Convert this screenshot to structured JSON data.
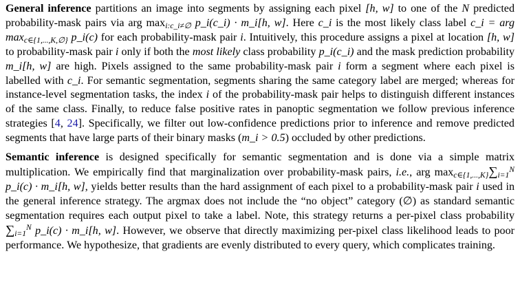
{
  "paragraphs": [
    {
      "lead": "General inference",
      "segments": [
        " partitions an image into segments by assigning each pixel ",
        "[h, w]",
        " to one of the ",
        "N",
        " predicted probability-mask pairs via ",
        "arg max",
        "i:c_i≠∅",
        " p_i(c_i) · m_i[h, w]",
        ". Here ",
        "c_i",
        " is the most likely class label ",
        "c_i = arg max",
        "c∈{1,...,K,∅}",
        " p_i(c)",
        " for each probability-mask pair ",
        "i",
        ". Intuitively, this procedure assigns a pixel at location ",
        "[h, w]",
        " to probability-mask pair ",
        "i",
        " only if both the ",
        "most likely",
        " class probability ",
        "p_i(c_i)",
        " and the mask prediction probability ",
        "m_i[h, w]",
        " are high. Pixels assigned to the same probability-mask pair ",
        "i",
        " form a segment where each pixel is labelled with ",
        "c_i",
        ". For semantic segmentation, segments sharing the same category label are merged; whereas for instance-level segmentation tasks, the index ",
        "i",
        " of the probability-mask pair helps to distinguish different instances of the same class. Finally, to reduce false positive rates in panoptic segmentation we follow previous inference strategies [",
        "4",
        ", ",
        "24",
        "]. Specifically, we filter out low-confidence predictions prior to inference and remove predicted segments that have large parts of their binary masks (",
        "m_i > 0.5",
        ") occluded by other predictions."
      ]
    },
    {
      "lead": "Semantic inference",
      "segments": [
        " is designed specifically for semantic segmentation and is done via a simple matrix multiplication. We empirically find that marginalization over probability-mask pairs, ",
        "i.e.",
        ", ",
        "arg max",
        "c∈{1,...,K}",
        "∑",
        "i=1",
        "N",
        " p_i(c) · m_i[h, w]",
        ", yields better results than the hard assignment of each pixel to a probability-mask pair ",
        "i",
        " used in the general inference strategy. The argmax does not include the “no object” category (∅) as standard semantic segmentation requires each output pixel to take a label. Note, this strategy returns a per-pixel class probability ",
        "∑",
        "i=1",
        "N",
        " p_i(c) · m_i[h, w]",
        ". However, we observe that directly maximizing per-pixel class likelihood leads to poor performance. We hypothesize, that gradients are evenly distributed to every query, which complicates training."
      ]
    }
  ]
}
